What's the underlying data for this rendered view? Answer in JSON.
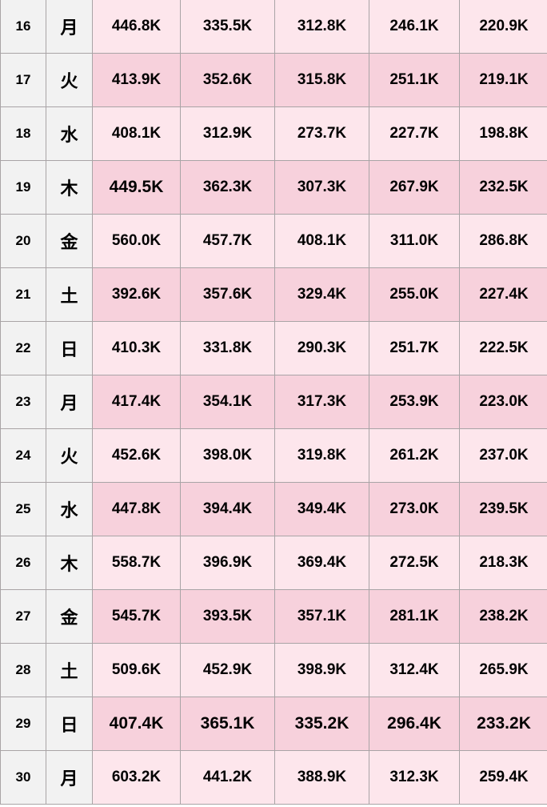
{
  "colors": {
    "label_bg": "#f2f2f2",
    "row_light": "#fde6ec",
    "row_dark": "#f7d1dc",
    "border": "#a9a4a6",
    "text": "#000000"
  },
  "rows": [
    {
      "day": "16",
      "weekday": "月",
      "values": [
        "446.8K",
        "335.5K",
        "312.8K",
        "246.1K",
        "220.9K"
      ]
    },
    {
      "day": "17",
      "weekday": "火",
      "values": [
        "413.9K",
        "352.6K",
        "315.8K",
        "251.1K",
        "219.1K"
      ]
    },
    {
      "day": "18",
      "weekday": "水",
      "values": [
        "408.1K",
        "312.9K",
        "273.7K",
        "227.7K",
        "198.8K"
      ]
    },
    {
      "day": "19",
      "weekday": "木",
      "values": [
        "449.5K",
        "362.3K",
        "307.3K",
        "267.9K",
        "232.5K"
      ]
    },
    {
      "day": "20",
      "weekday": "金",
      "values": [
        "560.0K",
        "457.7K",
        "408.1K",
        "311.0K",
        "286.8K"
      ]
    },
    {
      "day": "21",
      "weekday": "土",
      "values": [
        "392.6K",
        "357.6K",
        "329.4K",
        "255.0K",
        "227.4K"
      ]
    },
    {
      "day": "22",
      "weekday": "日",
      "values": [
        "410.3K",
        "331.8K",
        "290.3K",
        "251.7K",
        "222.5K"
      ]
    },
    {
      "day": "23",
      "weekday": "月",
      "values": [
        "417.4K",
        "354.1K",
        "317.3K",
        "253.9K",
        "223.0K"
      ]
    },
    {
      "day": "24",
      "weekday": "火",
      "values": [
        "452.6K",
        "398.0K",
        "319.8K",
        "261.2K",
        "237.0K"
      ]
    },
    {
      "day": "25",
      "weekday": "水",
      "values": [
        "447.8K",
        "394.4K",
        "349.4K",
        "273.0K",
        "239.5K"
      ]
    },
    {
      "day": "26",
      "weekday": "木",
      "values": [
        "558.7K",
        "396.9K",
        "369.4K",
        "272.5K",
        "218.3K"
      ]
    },
    {
      "day": "27",
      "weekday": "金",
      "values": [
        "545.7K",
        "393.5K",
        "357.1K",
        "281.1K",
        "238.2K"
      ]
    },
    {
      "day": "28",
      "weekday": "土",
      "values": [
        "509.6K",
        "452.9K",
        "398.9K",
        "312.4K",
        "265.9K"
      ]
    },
    {
      "day": "29",
      "weekday": "日",
      "values": [
        "407.4K",
        "365.1K",
        "335.2K",
        "296.4K",
        "233.2K"
      ]
    },
    {
      "day": "30",
      "weekday": "月",
      "values": [
        "603.2K",
        "441.2K",
        "388.9K",
        "312.3K",
        "259.4K"
      ]
    }
  ]
}
